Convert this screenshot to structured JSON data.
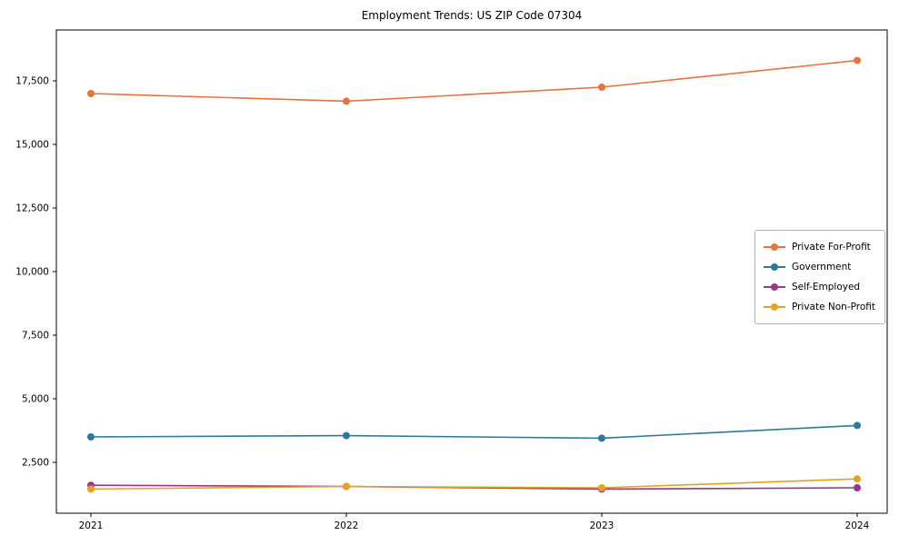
{
  "chart_data": {
    "type": "line",
    "title": "Employment Trends: US ZIP Code 07304",
    "x_labels": [
      "2021",
      "2022",
      "2023",
      "2024"
    ],
    "series": [
      {
        "name": "Private For-Profit",
        "color": "#e8743b",
        "values": [
          17000,
          16700,
          17250,
          18300
        ]
      },
      {
        "name": "Government",
        "color": "#2a7b9b",
        "values": [
          3500,
          3550,
          3450,
          3950
        ]
      },
      {
        "name": "Self-Employed",
        "color": "#9c3587",
        "values": [
          1600,
          1550,
          1450,
          1500
        ]
      },
      {
        "name": "Private Non-Profit",
        "color": "#e8a020",
        "values": [
          1450,
          1550,
          1500,
          1850
        ]
      }
    ],
    "y_ticks": [
      {
        "value": 2500,
        "label": "2,500"
      },
      {
        "value": 5000,
        "label": "5,000"
      },
      {
        "value": 7500,
        "label": "7,500"
      },
      {
        "value": 10000,
        "label": "10,000"
      },
      {
        "value": 12500,
        "label": "12,500"
      },
      {
        "value": 15000,
        "label": "15,000"
      },
      {
        "value": 17500,
        "label": "17,500"
      }
    ],
    "ylim": [
      500,
      19500
    ],
    "grid": false,
    "legend_position": "center-right",
    "axis_color": "#000000",
    "marker": "circle",
    "marker_radius": 4,
    "line_width": 1.6
  }
}
